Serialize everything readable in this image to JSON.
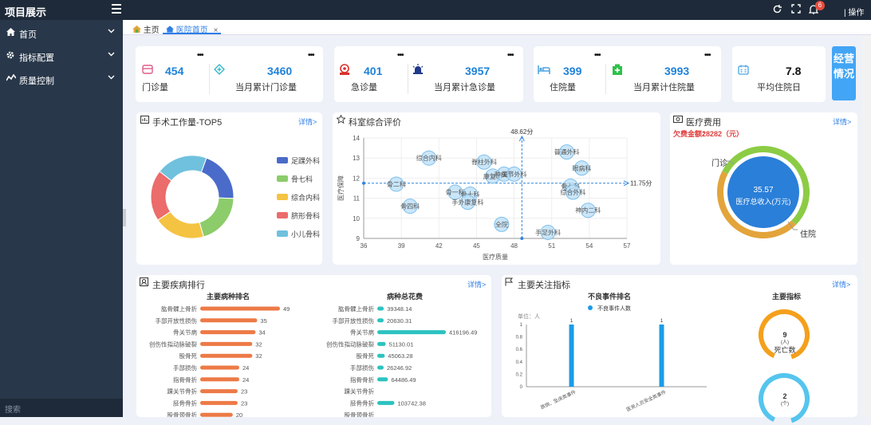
{
  "topbar": {
    "title": "项目展示",
    "notify_count": "6",
    "operation": "| 操作"
  },
  "sidebar": {
    "items": [
      {
        "label": "首页",
        "icon": "home-icon"
      },
      {
        "label": "指标配置",
        "icon": "gear-icon"
      },
      {
        "label": "质量控制",
        "icon": "quality-icon"
      }
    ],
    "search_placeholder": "搜索"
  },
  "tabs": [
    {
      "label": "主页"
    },
    {
      "label": "医院首页",
      "close": "×"
    }
  ],
  "stats": [
    {
      "value": "454",
      "label": "门诊量"
    },
    {
      "value": "3460",
      "label": "当月累计门诊量"
    },
    {
      "value": "401",
      "label": "急诊量"
    },
    {
      "value": "3957",
      "label": "当月累计急诊量"
    },
    {
      "value": "399",
      "label": "住院量"
    },
    {
      "value": "3993",
      "label": "当月累计住院量"
    },
    {
      "value": "7.8",
      "label": "平均住院日"
    }
  ],
  "side_button": "经营情况",
  "more_label": "详情>",
  "surgery": {
    "title": "手术工作量-TOP5",
    "chart_data": {
      "type": "pie",
      "categories": [
        "足踝外科",
        "骨七科",
        "综合内科",
        "脐形骨科",
        "小儿骨科"
      ],
      "values": [
        20,
        20,
        20,
        20,
        20
      ],
      "colors": [
        "#4a6bc9",
        "#8ccc6a",
        "#f5c342",
        "#ec6b6b",
        "#6fc1dd"
      ]
    }
  },
  "dept": {
    "title": "科室综合评价",
    "xlabel": "医疗质量",
    "ylabel": "医疗保障",
    "xmark": "48.62分",
    "ymark": "11.75分",
    "chart_data": {
      "type": "scatter",
      "xlim": [
        36,
        57
      ],
      "ylim": [
        9,
        14
      ],
      "xticks": [
        "36",
        "39",
        "42",
        "45",
        "48",
        "51",
        "54",
        "57"
      ],
      "yticks": [
        "9",
        "10",
        "11",
        "12",
        "13",
        "14"
      ],
      "points": [
        {
          "name": "综合内科",
          "x": 41.2,
          "y": 13.0
        },
        {
          "name": "脊柱外科",
          "x": 45.6,
          "y": 12.8
        },
        {
          "name": "普通外科",
          "x": 52.2,
          "y": 13.3
        },
        {
          "name": "骨二科",
          "x": 38.6,
          "y": 11.7
        },
        {
          "name": "康复科",
          "x": 46.3,
          "y": 12.1
        },
        {
          "name": "肿瘤科",
          "x": 47.2,
          "y": 12.2
        },
        {
          "name": "关节外科",
          "x": 48.0,
          "y": 12.2
        },
        {
          "name": "眼病科",
          "x": 53.4,
          "y": 12.5
        },
        {
          "name": "骨七科",
          "x": 52.5,
          "y": 11.6
        },
        {
          "name": "综合外科",
          "x": 52.7,
          "y": 11.3
        },
        {
          "name": "骨一科",
          "x": 43.3,
          "y": 11.3
        },
        {
          "name": "骨十科",
          "x": 44.5,
          "y": 11.2
        },
        {
          "name": "手外康复科",
          "x": 44.3,
          "y": 10.8
        },
        {
          "name": "骨四科",
          "x": 39.7,
          "y": 10.6
        },
        {
          "name": "神内二科",
          "x": 53.9,
          "y": 10.4
        },
        {
          "name": "全院",
          "x": 47.0,
          "y": 9.7
        },
        {
          "name": "手足外科",
          "x": 50.7,
          "y": 9.3
        }
      ]
    }
  },
  "cost": {
    "title": "医疗费用",
    "arrears_label": "欠费金额：",
    "arrears_value": "28282（元）",
    "center_value": "35.57",
    "center_label": "医疗总收入(万元)",
    "label_out": "门诊",
    "label_in": "住院",
    "chart_data": {
      "type": "pie",
      "categories": [
        "门诊",
        "住院"
      ],
      "values": [
        55,
        45
      ],
      "colors": [
        "#8ccc45",
        "#e3a43a"
      ]
    }
  },
  "disease": {
    "title": "主要疾病排行",
    "rank_title": "主要病种排名",
    "cost_title": "病种总花费",
    "chart_data": [
      {
        "type": "bar",
        "title": "主要病种排名",
        "categories": [
          "肱骨髁上骨折",
          "手部开放性损伤",
          "骨关节病",
          "创伤性指动脉破裂",
          "股骨死",
          "手部损伤",
          "指骨骨折",
          "踝关节骨折",
          "胫骨骨折",
          "股骨颈骨折"
        ],
        "values": [
          49,
          35,
          34,
          32,
          32,
          24,
          24,
          23,
          23,
          20
        ],
        "labels": [
          "49",
          "35",
          "34",
          "32",
          "32",
          "24",
          "24",
          "23",
          "23",
          "20"
        ]
      },
      {
        "type": "bar",
        "title": "病种总花费",
        "categories": [
          "肱骨髁上骨折",
          "手部开放性损伤",
          "骨关节病",
          "创伤性指动脉破裂",
          "股骨死",
          "手部损伤",
          "指骨骨折",
          "踝关节骨折",
          "胫骨骨折",
          "股骨颈骨折"
        ],
        "values": [
          39348.14,
          20630.31,
          416196.49,
          51130.01,
          45063.28,
          26246.92,
          64486.49,
          null,
          103742.38,
          null
        ],
        "labels": [
          "39348.14",
          "20630.31",
          "416196.49",
          "51130.01",
          "45063.28",
          "26246.92",
          "64486.49",
          "",
          "103742.38",
          ""
        ]
      }
    ]
  },
  "focus": {
    "title": "主要关注指标",
    "adverse_title": "不良事件排名",
    "legend": "不良事件人数",
    "unit": "单位：人",
    "main_title": "主要指标",
    "chart_data": {
      "type": "bar",
      "categories": [
        "跌倒、坠床类事件",
        "医务人员安全类事件"
      ],
      "values": [
        1,
        1
      ],
      "yticks": [
        "0",
        "0.2",
        "0.4",
        "0.6",
        "0.8",
        "1"
      ],
      "ylim": [
        0,
        1
      ]
    },
    "gauges": [
      {
        "value": "9",
        "unit": "(人)",
        "label": "死亡数",
        "color": "#f4a01b"
      },
      {
        "value": "2",
        "unit": "(个)",
        "label": "",
        "color": "#55c5ee"
      }
    ]
  }
}
